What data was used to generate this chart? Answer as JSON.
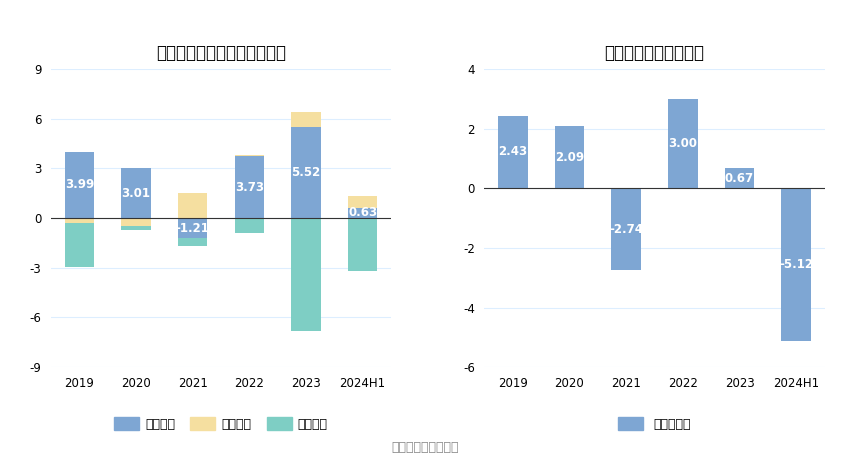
{
  "left_title": "新澳股份现金流净额（亿元）",
  "right_title": "自由现金流量（亿元）",
  "categories": [
    "2019",
    "2020",
    "2021",
    "2022",
    "2023",
    "2024H1"
  ],
  "operating": [
    3.99,
    3.01,
    -1.21,
    3.73,
    5.52,
    0.63
  ],
  "financing": [
    -0.3,
    -0.5,
    1.5,
    0.05,
    0.9,
    0.7
  ],
  "investing": [
    -2.65,
    -0.2,
    -0.5,
    -0.9,
    -6.8,
    -3.2
  ],
  "free_cashflow": [
    2.43,
    2.09,
    -2.74,
    3.0,
    0.67,
    -5.12
  ],
  "op_labels": [
    "3.99",
    "3.01",
    "-1.21",
    "3.73",
    "5.52",
    "0.63"
  ],
  "fc_labels": [
    "2.43",
    "2.09",
    "-2.74",
    "3.00",
    "0.67",
    "-5.12"
  ],
  "color_operating": "#7EA6D3",
  "color_financing": "#F5DFA0",
  "color_investing": "#7ECEC4",
  "color_free": "#7EA6D3",
  "left_ylim": [
    -9,
    9
  ],
  "left_yticks": [
    -9,
    -6,
    -3,
    0,
    3,
    6,
    9
  ],
  "right_ylim": [
    -6,
    4
  ],
  "right_yticks": [
    -6,
    -4,
    -2,
    0,
    2,
    4
  ],
  "legend1_labels": [
    "经营活动",
    "筹资活动",
    "投资活动"
  ],
  "legend2_labels": [
    "自由现金流"
  ],
  "source_text": "数据来源：恒生聚源",
  "background_color": "#FFFFFF",
  "grid_color": "#DDEEFF",
  "label_fontsize": 8.5,
  "title_fontsize": 12,
  "bar_width": 0.52
}
